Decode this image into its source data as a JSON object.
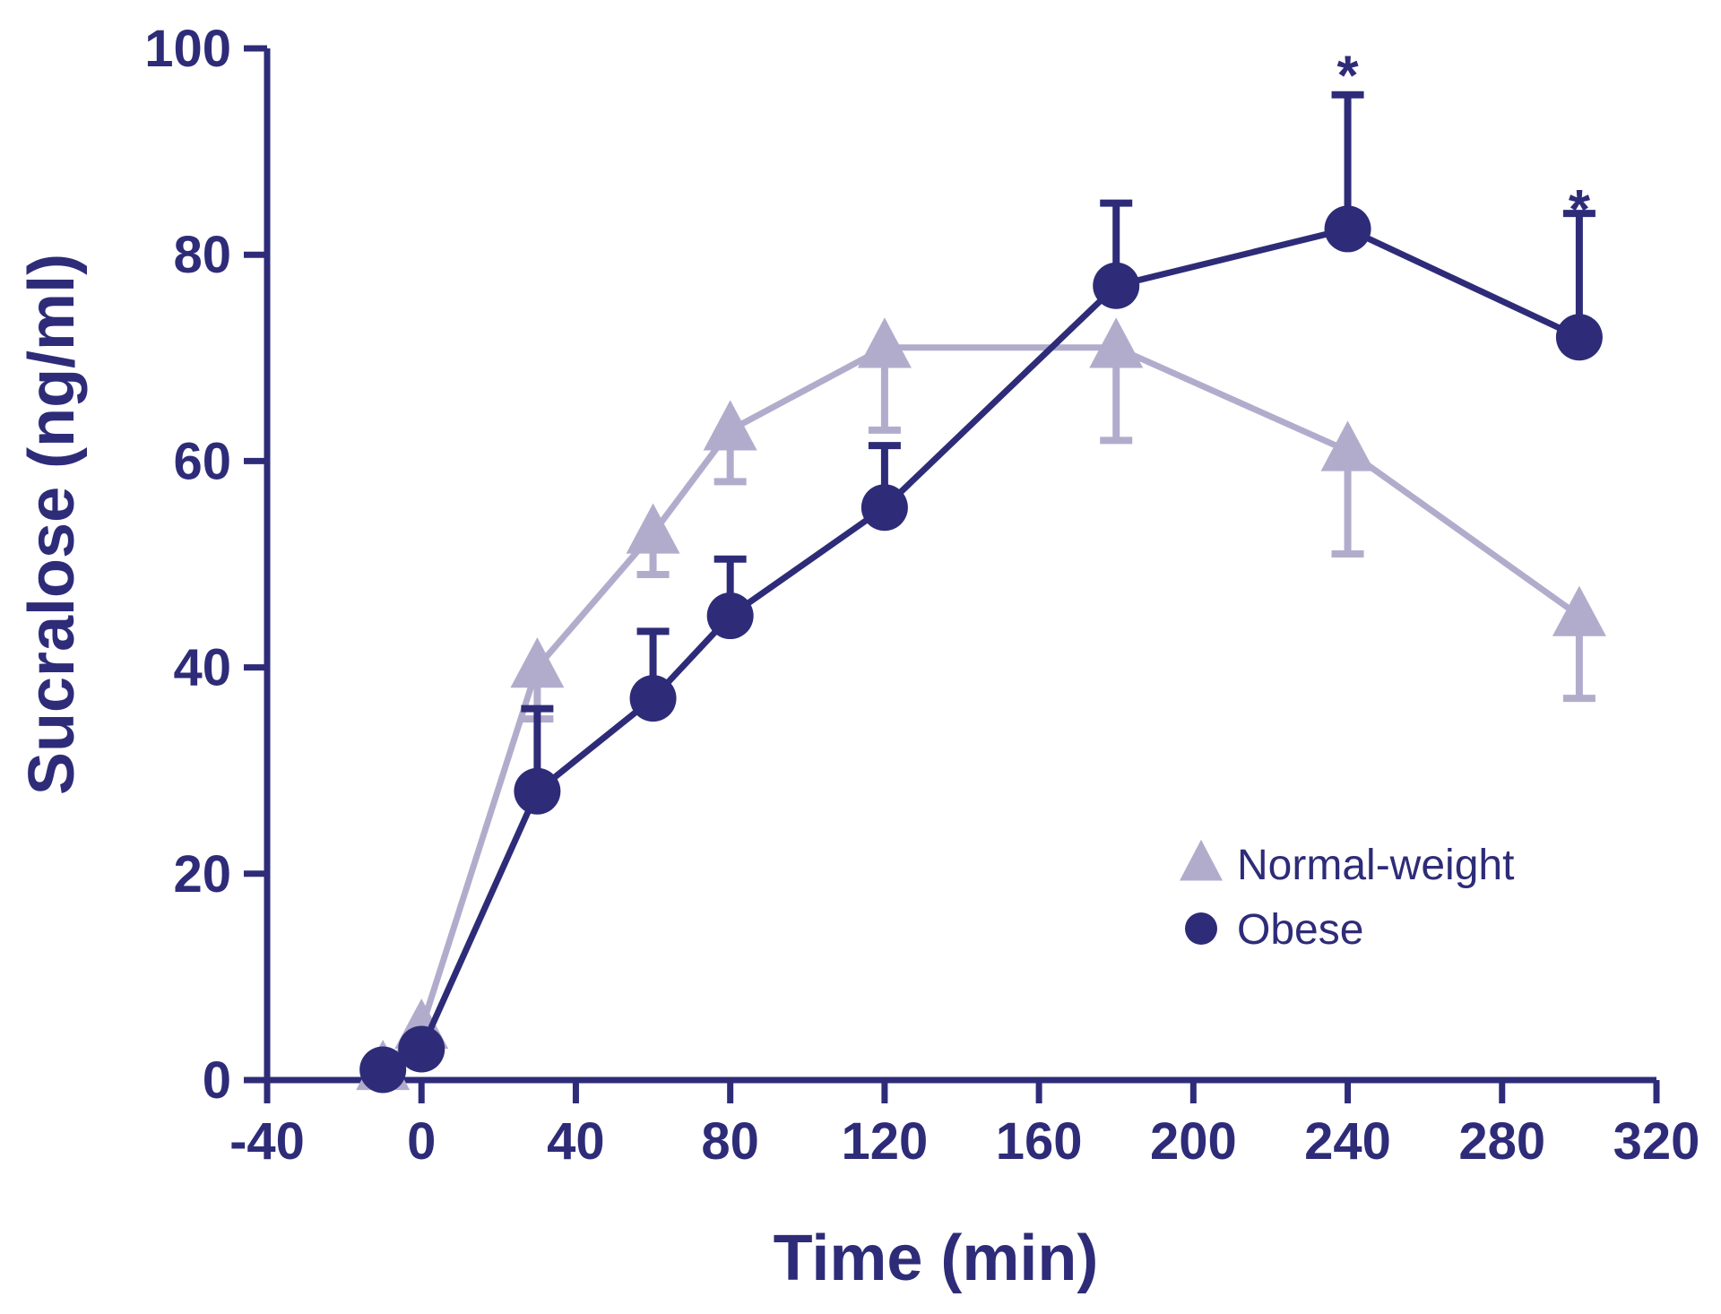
{
  "chart_data": {
    "type": "line",
    "title": "",
    "xlabel": "Time (min)",
    "ylabel": "Sucralose (ng/ml)",
    "xlim": [
      -40,
      320
    ],
    "ylim": [
      0,
      100
    ],
    "xticks": [
      -40,
      0,
      40,
      80,
      120,
      160,
      200,
      240,
      280,
      320
    ],
    "yticks": [
      0,
      20,
      40,
      60,
      80,
      100
    ],
    "xtick_labels": [
      "-40",
      "0",
      "40",
      "80",
      "120",
      "160",
      "200",
      "240",
      "280",
      "320"
    ],
    "ytick_labels": [
      "0",
      "20",
      "40",
      "60",
      "80",
      "100"
    ],
    "legend_position": "lower-right",
    "series": [
      {
        "name": "Normal-weight",
        "marker": "triangle",
        "color": "#b2accc",
        "error_direction": "down",
        "x": [
          -10,
          0,
          30,
          60,
          80,
          120,
          180,
          240,
          300
        ],
        "y": [
          1,
          5,
          40,
          53,
          63,
          71,
          71,
          61,
          45
        ],
        "error": [
          0,
          0,
          5,
          4,
          5,
          8,
          9,
          10,
          8
        ]
      },
      {
        "name": "Obese",
        "marker": "circle",
        "color": "#2e2c78",
        "error_direction": "up",
        "x": [
          -10,
          0,
          30,
          60,
          80,
          120,
          180,
          240,
          300
        ],
        "y": [
          1,
          3,
          28,
          37,
          45,
          55.5,
          77,
          82.5,
          72
        ],
        "error": [
          0,
          0,
          8,
          6.5,
          5.5,
          6,
          8,
          13,
          12
        ]
      }
    ],
    "annotations": [
      {
        "text": "*",
        "x": 240,
        "y": 99
      },
      {
        "text": "*",
        "x": 300,
        "y": 86
      }
    ]
  }
}
